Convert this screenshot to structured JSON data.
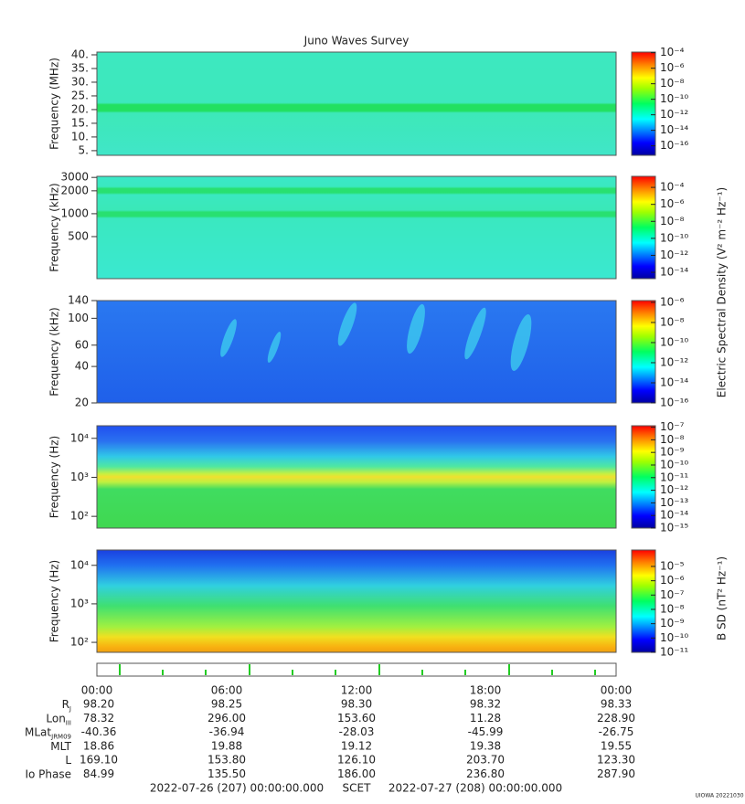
{
  "title": "Juno Waves Survey",
  "chart_data": [
    {
      "type": "spectrogram",
      "ylabel": "Frequency (MHz)",
      "log_y": false,
      "ylim": [
        3.3,
        41
      ],
      "yticks": [
        {
          "value": 40,
          "label": "40."
        },
        {
          "value": 35,
          "label": "35."
        },
        {
          "value": 30,
          "label": "30."
        },
        {
          "value": 25,
          "label": "25."
        },
        {
          "value": 20,
          "label": "20."
        },
        {
          "value": 15,
          "label": "15."
        },
        {
          "value": 10,
          "label": "10."
        },
        {
          "value": 5,
          "label": "5."
        }
      ],
      "clim": [
        6e-18,
        0.00012
      ],
      "cticks": [
        {
          "value": 0.0001,
          "label": "10⁻⁴"
        },
        {
          "value": 1e-06,
          "label": "10⁻⁶"
        },
        {
          "value": 1e-08,
          "label": "10⁻⁸"
        },
        {
          "value": 1e-10,
          "label": "10⁻¹⁰"
        },
        {
          "value": 1e-12,
          "label": "10⁻¹²"
        },
        {
          "value": 1e-14,
          "label": "10⁻¹⁴"
        },
        {
          "value": 1e-16,
          "label": "10⁻¹⁶"
        }
      ]
    },
    {
      "type": "spectrogram",
      "ylabel": "Frequency (kHz)",
      "log_y": true,
      "ylim": [
        140,
        3100
      ],
      "yticks": [
        3000,
        2000,
        1000,
        500
      ],
      "clim": [
        1.8e-15,
        0.002
      ],
      "cticks": [
        {
          "value": 0.0001,
          "label": "10⁻⁴"
        },
        {
          "value": 1e-06,
          "label": "10⁻⁶"
        },
        {
          "value": 1e-08,
          "label": "10⁻⁸"
        },
        {
          "value": 1e-10,
          "label": "10⁻¹⁰"
        },
        {
          "value": 1e-12,
          "label": "10⁻¹²"
        },
        {
          "value": 1e-14,
          "label": "10⁻¹⁴"
        }
      ]
    },
    {
      "type": "spectrogram",
      "ylabel": "Frequency (kHz)",
      "log_y": true,
      "ylim": [
        20,
        140
      ],
      "yticks": [
        140,
        100,
        60,
        40,
        20
      ],
      "clim": [
        1e-16,
        1.5e-06
      ],
      "cticks": [
        {
          "value": 1e-06,
          "label": "10⁻⁶"
        },
        {
          "value": 1e-08,
          "label": "10⁻⁸"
        },
        {
          "value": 1e-10,
          "label": "10⁻¹⁰"
        },
        {
          "value": 1e-12,
          "label": "10⁻¹²"
        },
        {
          "value": 1e-14,
          "label": "10⁻¹⁴"
        },
        {
          "value": 1e-16,
          "label": "10⁻¹⁶"
        }
      ]
    },
    {
      "type": "spectrogram",
      "ylabel": "Frequency (Hz)",
      "log_y": true,
      "ylim": [
        50,
        21000
      ],
      "yticks": [
        {
          "value": 10000,
          "label": "10⁴"
        },
        {
          "value": 1000,
          "label": "10³"
        },
        {
          "value": 100,
          "label": "10²"
        }
      ],
      "clim": [
        1e-15,
        1.3e-07
      ],
      "cticks": [
        {
          "value": 1e-07,
          "label": "10⁻⁷"
        },
        {
          "value": 1e-08,
          "label": "10⁻⁸"
        },
        {
          "value": 1e-09,
          "label": "10⁻⁹"
        },
        {
          "value": 1e-10,
          "label": "10⁻¹⁰"
        },
        {
          "value": 1e-11,
          "label": "10⁻¹¹"
        },
        {
          "value": 1e-12,
          "label": "10⁻¹²"
        },
        {
          "value": 1e-13,
          "label": "10⁻¹³"
        },
        {
          "value": 1e-14,
          "label": "10⁻¹⁴"
        },
        {
          "value": 1e-15,
          "label": "10⁻¹⁵"
        }
      ]
    },
    {
      "type": "spectrogram",
      "ylabel": "Frequency (Hz)",
      "log_y": true,
      "ylim": [
        55,
        25000
      ],
      "yticks": [
        {
          "value": 10000,
          "label": "10⁴"
        },
        {
          "value": 1000,
          "label": "10³"
        },
        {
          "value": 100,
          "label": "10²"
        }
      ],
      "clim": [
        1e-11,
        0.00014
      ],
      "cticks": [
        {
          "value": 1e-05,
          "label": "10⁻⁵"
        },
        {
          "value": 1e-06,
          "label": "10⁻⁶"
        },
        {
          "value": 1e-07,
          "label": "10⁻⁷"
        },
        {
          "value": 1e-08,
          "label": "10⁻⁸"
        },
        {
          "value": 1e-09,
          "label": "10⁻⁹"
        },
        {
          "value": 1e-10,
          "label": "10⁻¹⁰"
        },
        {
          "value": 1e-11,
          "label": "10⁻¹¹"
        }
      ]
    }
  ],
  "colorbar_label_e": "Electric Spectral Density (V² m⁻² Hz⁻¹)",
  "colorbar_label_b": "B SD (nT² Hz⁻¹)",
  "time_labels": [
    "00:00",
    "06:00",
    "12:00",
    "18:00",
    "00:00"
  ],
  "ephemeris": [
    {
      "label": {
        "text": "R",
        "sub": "J"
      },
      "values": [
        "98.20",
        "98.25",
        "98.30",
        "98.32",
        "98.33"
      ]
    },
    {
      "label": {
        "text": "Lon",
        "sub": "III"
      },
      "values": [
        "78.32",
        "296.00",
        "153.60",
        "11.28",
        "228.90"
      ]
    },
    {
      "label": {
        "text": "MLat",
        "sub": "JRM09"
      },
      "values": [
        "-40.36",
        "-36.94",
        "-28.03",
        "-45.99",
        "-26.75"
      ]
    },
    {
      "label": {
        "text": "MLT"
      },
      "values": [
        "18.86",
        "19.88",
        "19.12",
        "19.38",
        "19.55"
      ]
    },
    {
      "label": {
        "text": "L"
      },
      "values": [
        "169.10",
        "153.80",
        "126.10",
        "203.70",
        "123.30"
      ]
    },
    {
      "label": {
        "text": "Io Phase"
      },
      "values": [
        "84.99",
        "135.50",
        "186.00",
        "236.80",
        "287.90"
      ]
    }
  ],
  "footer": {
    "start": "2022-07-26 (207) 00:00:00.000",
    "center": "SCET",
    "end": "2022-07-27 (208) 00:00:00.000",
    "credit": "UIOWA 20221030"
  }
}
